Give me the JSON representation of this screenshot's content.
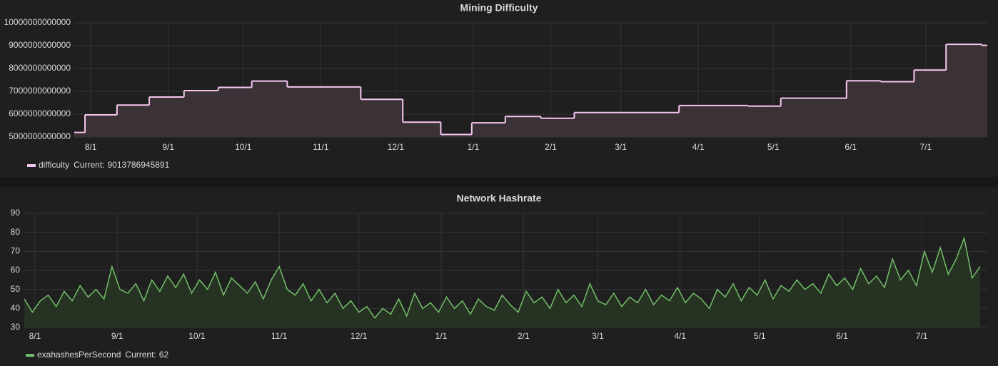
{
  "chart_data": [
    {
      "type": "line",
      "step": true,
      "fill": true,
      "grid": true,
      "title": "Mining Difficulty",
      "x": [
        -6.6,
        -2.3,
        10.5,
        23.4,
        37.3,
        51,
        64.4,
        78.6,
        108,
        124.8,
        140,
        152.4,
        165.8,
        180,
        193.4,
        235.3,
        263,
        276,
        302.3,
        316,
        329.3,
        342.1,
        356.4
      ],
      "xlim": [
        -6.6,
        358.6
      ],
      "xticks": [
        {
          "value": 0,
          "label": "8/1"
        },
        {
          "value": 31,
          "label": "9/1"
        },
        {
          "value": 61,
          "label": "10/1"
        },
        {
          "value": 92,
          "label": "11/1"
        },
        {
          "value": 122,
          "label": "12/1"
        },
        {
          "value": 153,
          "label": "1/1"
        },
        {
          "value": 184,
          "label": "2/1"
        },
        {
          "value": 212,
          "label": "3/1"
        },
        {
          "value": 243,
          "label": "4/1"
        },
        {
          "value": 273,
          "label": "5/1"
        },
        {
          "value": 304,
          "label": "6/1"
        },
        {
          "value": 334,
          "label": "7/1"
        }
      ],
      "ylim": [
        5000000000000,
        10000000000000
      ],
      "yticks": [
        5000000000000,
        6000000000000,
        7000000000000,
        8000000000000,
        9000000000000,
        10000000000000
      ],
      "series": [
        {
          "name": "difficulty",
          "color": "#f5c6ef",
          "fill_color": "#3a3236",
          "values": [
            5200000000000,
            5970000000000,
            6400000000000,
            6750000000000,
            7030000000000,
            7170000000000,
            7450000000000,
            7190000000000,
            6650000000000,
            5650000000000,
            5110000000000,
            5620000000000,
            5900000000000,
            5820000000000,
            6070000000000,
            6380000000000,
            6350000000000,
            6700000000000,
            7460000000000,
            7420000000000,
            7930000000000,
            9060000000000,
            9013786945891
          ],
          "current_label": "Current:",
          "current": 9013786945891
        }
      ]
    },
    {
      "type": "line",
      "step": false,
      "fill": true,
      "grid": true,
      "title": "Network Hashrate",
      "x": [
        -4,
        -1,
        2,
        5,
        8,
        11,
        14,
        17,
        20,
        23,
        26,
        29,
        32,
        35,
        38,
        41,
        44,
        47,
        50,
        53,
        56,
        59,
        62,
        65,
        68,
        71,
        74,
        77,
        80,
        83,
        86,
        89,
        92,
        95,
        98,
        101,
        104,
        107,
        110,
        113,
        116,
        119,
        122,
        125,
        128,
        131,
        134,
        137,
        140,
        143,
        146,
        149,
        152,
        155,
        158,
        161,
        164,
        167,
        170,
        173,
        176,
        179,
        182,
        185,
        188,
        191,
        194,
        197,
        200,
        203,
        206,
        209,
        212,
        215,
        218,
        221,
        224,
        227,
        230,
        233,
        236,
        239,
        242,
        245,
        248,
        251,
        254,
        257,
        260,
        263,
        266,
        269,
        272,
        275,
        278,
        281,
        284,
        287,
        290,
        293,
        296,
        299,
        302,
        305,
        308,
        311,
        314,
        317,
        320,
        323,
        326,
        329,
        332,
        335,
        338,
        341,
        344,
        347,
        350,
        353,
        356
      ],
      "xlim": [
        -4.3,
        358.7
      ],
      "xticks": [
        {
          "value": 0,
          "label": "8/1"
        },
        {
          "value": 31,
          "label": "9/1"
        },
        {
          "value": 61,
          "label": "10/1"
        },
        {
          "value": 92,
          "label": "11/1"
        },
        {
          "value": 122,
          "label": "12/1"
        },
        {
          "value": 153,
          "label": "1/1"
        },
        {
          "value": 184,
          "label": "2/1"
        },
        {
          "value": 212,
          "label": "3/1"
        },
        {
          "value": 243,
          "label": "4/1"
        },
        {
          "value": 273,
          "label": "5/1"
        },
        {
          "value": 304,
          "label": "6/1"
        },
        {
          "value": 334,
          "label": "7/1"
        }
      ],
      "ylim": [
        30,
        90
      ],
      "yticks": [
        30,
        40,
        50,
        60,
        70,
        80,
        90
      ],
      "series": [
        {
          "name": "exahashesPerSecond",
          "color": "#73bf69",
          "fill_color": "#263322",
          "values": [
            45,
            38,
            44,
            47,
            41,
            49,
            44,
            52,
            46,
            50,
            45,
            62,
            50,
            48,
            53,
            44,
            55,
            49,
            57,
            51,
            58,
            48,
            55,
            50,
            59,
            47,
            56,
            52,
            48,
            54,
            45,
            55,
            62,
            50,
            47,
            53,
            44,
            50,
            43,
            48,
            40,
            44,
            38,
            41,
            35,
            40,
            37,
            45,
            36,
            48,
            40,
            43,
            38,
            46,
            40,
            44,
            37,
            45,
            41,
            39,
            47,
            42,
            38,
            49,
            43,
            46,
            40,
            50,
            43,
            47,
            41,
            53,
            44,
            42,
            48,
            41,
            46,
            43,
            50,
            42,
            47,
            44,
            51,
            43,
            48,
            45,
            40,
            50,
            46,
            53,
            44,
            51,
            47,
            55,
            45,
            52,
            49,
            55,
            50,
            53,
            48,
            58,
            52,
            56,
            50,
            61,
            53,
            57,
            51,
            66,
            55,
            60,
            52,
            70,
            59,
            72,
            58,
            66,
            77,
            56,
            62
          ],
          "current_label": "Current:",
          "current": 62
        }
      ]
    }
  ]
}
